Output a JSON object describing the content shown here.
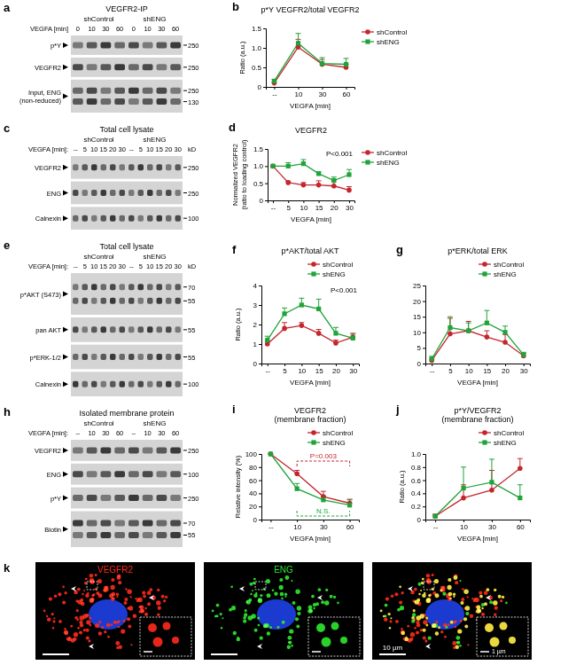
{
  "chart_data": [
    {
      "panel_label": "b",
      "type": "line",
      "title": "p*Y VEGFR2/total VEGFR2",
      "x_label": "VEGFA [min]",
      "y_label": [
        "Ratio (a.u.)"
      ],
      "categories": [
        "--",
        "10",
        "30",
        "60"
      ],
      "series": [
        {
          "name": "shControl",
          "color": "#c4262e",
          "marker": "circle",
          "values": [
            0.1,
            1.02,
            0.58,
            0.5
          ],
          "errors": [
            0.03,
            0.2,
            0.12,
            0.08
          ]
        },
        {
          "name": "shENG",
          "color": "#1fa33a",
          "marker": "square",
          "values": [
            0.15,
            1.12,
            0.6,
            0.58
          ],
          "errors": [
            0.04,
            0.25,
            0.15,
            0.15
          ]
        }
      ],
      "ylim": [
        0,
        1.5
      ],
      "yticks": [
        0,
        0.5,
        {
          "value": 1,
          "label": "1.0"
        },
        1.5
      ],
      "legend": "top-right",
      "grid": false
    },
    {
      "panel_label": "d",
      "type": "line",
      "title": "VEGFR2",
      "x_label": "VEGFA [min]",
      "y_label": [
        "Normalized VEGFR2",
        "(ratio to loading control)"
      ],
      "categories": [
        "--",
        "5",
        "10",
        "15",
        "20",
        "30"
      ],
      "series": [
        {
          "name": "shControl",
          "color": "#c4262e",
          "marker": "circle",
          "values": [
            1.0,
            0.52,
            0.45,
            0.45,
            0.42,
            0.3
          ],
          "errors": [
            0,
            0.04,
            0.07,
            0.12,
            0.15,
            0.1
          ]
        },
        {
          "name": "shENG",
          "color": "#1fa33a",
          "marker": "square",
          "values": [
            1.0,
            1.0,
            1.07,
            0.78,
            0.58,
            0.75
          ],
          "errors": [
            0,
            0.1,
            0.12,
            0.05,
            0.1,
            0.15
          ]
        }
      ],
      "ylim": [
        0,
        1.5
      ],
      "yticks": [
        0,
        0.5,
        {
          "value": 1,
          "label": "1.0"
        },
        1.5
      ],
      "legend": "top-right",
      "grid": false,
      "annotations": [
        {
          "text": "P<0.001"
        }
      ]
    },
    {
      "panel_label": "f",
      "type": "line",
      "title": "p*AKT/total AKT",
      "x_label": "VEGFA [min]",
      "y_label": [
        "Ratio (a.u.)"
      ],
      "categories": [
        "--",
        "5",
        "10",
        "15",
        "20",
        "30"
      ],
      "series": [
        {
          "name": "shControl",
          "color": "#c4262e",
          "marker": "circle",
          "values": [
            1.0,
            1.8,
            1.95,
            1.55,
            1.05,
            1.35
          ],
          "errors": [
            0.15,
            0.3,
            0.15,
            0.2,
            0.15,
            0.2
          ]
        },
        {
          "name": "shENG",
          "color": "#1fa33a",
          "marker": "square",
          "values": [
            1.2,
            2.55,
            3.0,
            2.8,
            1.55,
            1.3
          ],
          "errors": [
            0.2,
            0.3,
            0.35,
            0.5,
            0.3,
            0.2
          ]
        }
      ],
      "ylim": [
        0,
        4
      ],
      "yticks": [
        0,
        1,
        2,
        3,
        4
      ],
      "legend": "top-right",
      "grid": false,
      "annotations": [
        {
          "text": "P<0.001"
        }
      ]
    },
    {
      "panel_label": "g",
      "type": "line",
      "title": "p*ERK/total ERK",
      "x_label": "VEGFA [min]",
      "categories": [
        "--",
        "5",
        "10",
        "15",
        "20",
        "30"
      ],
      "series": [
        {
          "name": "shControl",
          "color": "#c4262e",
          "marker": "circle",
          "values": [
            1.0,
            9.5,
            10.5,
            8.5,
            6.8,
            2.5
          ],
          "errors": [
            0.5,
            5,
            3,
            2,
            2.5,
            0.8
          ]
        },
        {
          "name": "shENG",
          "color": "#1fa33a",
          "marker": "square",
          "values": [
            1.5,
            11.5,
            10.5,
            13,
            10,
            2.8
          ],
          "errors": [
            0.8,
            3.5,
            2.5,
            4,
            2,
            0.8
          ]
        }
      ],
      "ylim": [
        0,
        25
      ],
      "yticks": [
        0,
        5,
        10,
        15,
        20,
        25
      ],
      "legend": "top-right",
      "grid": false
    },
    {
      "panel_label": "i",
      "type": "line",
      "title": "VEGFR2",
      "subtitle": "(membrane fraction)",
      "x_label": "VEGFA [min]",
      "y_label": [
        "Relative intensity (%)"
      ],
      "categories": [
        "--",
        "10",
        "30",
        "60"
      ],
      "series": [
        {
          "name": "shControl",
          "color": "#c4262e",
          "marker": "circle",
          "values": [
            100,
            70,
            35,
            25
          ],
          "errors": [
            0,
            5,
            8,
            6
          ]
        },
        {
          "name": "shENG",
          "color": "#1fa33a",
          "marker": "square",
          "values": [
            100,
            47,
            30,
            22
          ],
          "errors": [
            0,
            8,
            6,
            8
          ]
        }
      ],
      "ylim": [
        0,
        100
      ],
      "yticks": [
        0,
        20,
        40,
        60,
        80,
        100
      ],
      "legend": "top-right",
      "grid": false,
      "annotations": [
        {
          "text": "P=0.003",
          "color": "#c4262e"
        },
        {
          "text": "N.S.",
          "color": "#1fa33a"
        }
      ]
    },
    {
      "panel_label": "j",
      "type": "line",
      "title": "p*Y/VEGFR2",
      "subtitle": "(membrane fraction)",
      "x_label": "VEGFA [min]",
      "y_label": [
        "Ratio (a.u.)"
      ],
      "categories": [
        "--",
        "10",
        "30",
        "60"
      ],
      "series": [
        {
          "name": "shControl",
          "color": "#c4262e",
          "marker": "circle",
          "values": [
            0.05,
            0.33,
            0.45,
            0.78
          ],
          "errors": [
            0.03,
            0.2,
            0.3,
            0.15
          ]
        },
        {
          "name": "shENG",
          "color": "#1fa33a",
          "marker": "square",
          "values": [
            0.05,
            0.48,
            0.57,
            0.33
          ],
          "errors": [
            0.03,
            0.32,
            0.35,
            0.2
          ]
        }
      ],
      "ylim": [
        0,
        1
      ],
      "yticks": [
        0,
        0.2,
        0.4,
        0.6,
        0.8,
        {
          "value": 1,
          "label": "1.0"
        }
      ],
      "legend": "top-right",
      "grid": false
    }
  ],
  "blots": [
    {
      "panel_label": "a",
      "title": "VEGFR2-IP",
      "groups": [
        "shControl",
        "shENG"
      ],
      "time_label": "VEGFA [min]",
      "times": [
        "0",
        "10",
        "30",
        "60",
        "0",
        "10",
        "30",
        "60"
      ],
      "rows": [
        {
          "label": [
            "p*Y"
          ],
          "markers": [
            250
          ]
        },
        {
          "label": [
            "VEGFR2"
          ],
          "markers": [
            250
          ]
        },
        {
          "label": [
            "Input, ENG",
            "(non-reduced)"
          ],
          "markers": [
            250,
            130
          ]
        }
      ]
    },
    {
      "panel_label": "c",
      "title": "Total cell lysate",
      "groups": [
        "shControl",
        "shENG"
      ],
      "time_label": "VEGFA [min]:",
      "kd_label": "kD",
      "times": [
        "--",
        "5",
        "10",
        "15",
        "20",
        "30",
        "--",
        "5",
        "10",
        "15",
        "20",
        "30"
      ],
      "rows": [
        {
          "label": [
            "VEGFR2"
          ],
          "markers": [
            250
          ]
        },
        {
          "label": [
            "ENG"
          ],
          "markers": [
            250
          ]
        },
        {
          "label": [
            "Calnexin"
          ],
          "markers": [
            100
          ]
        }
      ]
    },
    {
      "panel_label": "e",
      "title": "Total cell lysate",
      "groups": [
        "shControl",
        "shENG"
      ],
      "time_label": "VEGFA [min]:",
      "kd_label": "kD",
      "times": [
        "--",
        "5",
        "10",
        "15",
        "20",
        "30",
        "--",
        "5",
        "10",
        "15",
        "20",
        "30"
      ],
      "rows": [
        {
          "label": [
            "p*AKT (S473)"
          ],
          "markers": [
            70,
            55
          ]
        },
        {
          "label": [
            "pan AKT"
          ],
          "markers": [
            55
          ]
        },
        {
          "label": [
            "p*ERK-1/2"
          ],
          "markers": [
            55
          ]
        },
        {
          "label": [
            "Calnexin"
          ],
          "markers": [
            100
          ]
        }
      ]
    },
    {
      "panel_label": "h",
      "title": "Isolated membrane protein",
      "groups": [
        "shControl",
        "shENG"
      ],
      "time_label": "VEGFA [min]:",
      "times": [
        "--",
        "10",
        "30",
        "60",
        "--",
        "10",
        "30",
        "60"
      ],
      "rows": [
        {
          "label": [
            "VEGFR2"
          ],
          "markers": [
            250
          ]
        },
        {
          "label": [
            "ENG"
          ],
          "markers": [
            100
          ]
        },
        {
          "label": [
            "p*Y"
          ],
          "markers": [
            250
          ]
        },
        {
          "label": [
            "Biotin"
          ],
          "markers": [
            70,
            55
          ]
        }
      ]
    }
  ],
  "micrograph": {
    "panel_label": "k",
    "channels": [
      {
        "name": "VEGFR2",
        "color": "#ff2a1a"
      },
      {
        "name": "ENG",
        "color": "#2ee82e"
      }
    ],
    "scale_bar": "10 µm",
    "inset_scale_bar": "1 µm"
  }
}
